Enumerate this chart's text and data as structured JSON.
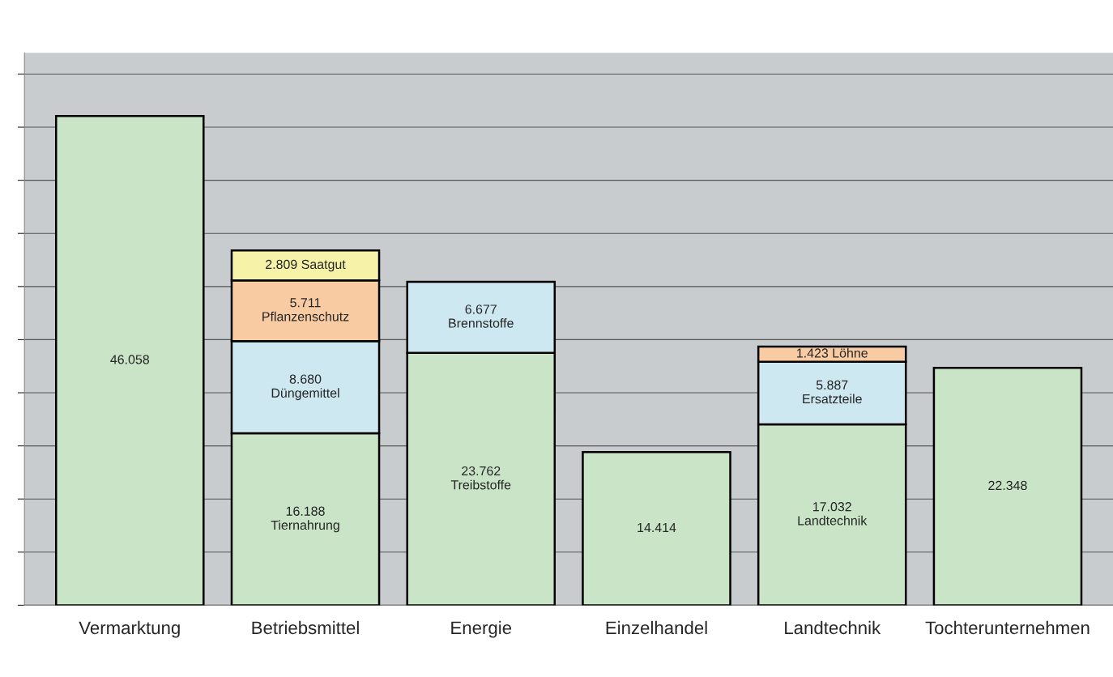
{
  "chart_data": {
    "type": "bar",
    "stacked": true,
    "categories": [
      "Vermarktung",
      "Betriebsmittel",
      "Energie",
      "Einzelhandel",
      "Landtechnik",
      "Tochterunternehmen"
    ],
    "series": [
      {
        "color": "#c9e4c7",
        "values": [
          46058,
          16188,
          23762,
          14414,
          17032,
          22348
        ],
        "value_labels": [
          "46.058",
          "16.188\nTiernahrung",
          "23.762\nTreibstoffe",
          "14.414",
          "17.032\nLandtechnik",
          "22.348"
        ]
      },
      {
        "color": "#cde8f1",
        "values": [
          null,
          8680,
          6677,
          null,
          5887,
          null
        ],
        "value_labels": [
          null,
          "8.680\nDüngemittel",
          "6.677\nBrennstoffe",
          null,
          "5.887\nErsatzteile",
          null
        ]
      },
      {
        "color": "#f8cba3",
        "values": [
          null,
          5711,
          null,
          null,
          1423,
          null
        ],
        "value_labels": [
          null,
          "5.711\nPflanzenschutz",
          null,
          null,
          "1.423 Löhne",
          null
        ]
      },
      {
        "color": "#f6f2a8",
        "values": [
          null,
          2809,
          null,
          null,
          null,
          null
        ],
        "value_labels": [
          null,
          "2.809 Saatgut",
          null,
          null,
          null,
          null
        ]
      }
    ],
    "ylim": [
      0,
      52000
    ],
    "yticks": [
      {
        "value": 0,
        "label": null
      },
      {
        "value": 5000,
        "label": null
      },
      {
        "value": 10000,
        "label": null
      },
      {
        "value": 15000,
        "label": null
      },
      {
        "value": 20000,
        "label": null
      },
      {
        "value": 25000,
        "label": null
      },
      {
        "value": 30000,
        "label": null
      },
      {
        "value": 35000,
        "label": null
      },
      {
        "value": 40000,
        "label": null
      },
      {
        "value": 45000,
        "label": null
      },
      {
        "value": 50000,
        "label": null
      }
    ],
    "tick_labels": "x",
    "grid": "y",
    "legend": false
  }
}
